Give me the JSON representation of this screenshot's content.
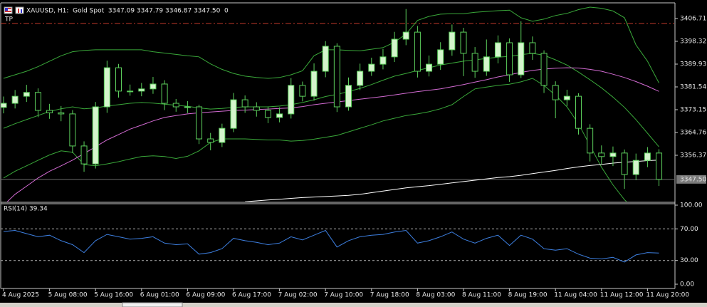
{
  "chart_data": [
    {
      "type": "candlestick",
      "title": "XAUUSD, H1:  Gold Spot  3347.09 3347.79 3346.87 3347.50  0",
      "categories": [
        "4 Aug 2025",
        null,
        null,
        null,
        "5 Aug 08:00",
        null,
        null,
        null,
        "5 Aug 16:00",
        null,
        null,
        null,
        "6 Aug 01:00",
        null,
        null,
        null,
        "6 Aug 09:00",
        null,
        null,
        null,
        "6 Aug 17:00",
        null,
        null,
        null,
        "7 Aug 02:00",
        null,
        null,
        null,
        "7 Aug 10:00",
        null,
        null,
        null,
        "7 Aug 18:00",
        null,
        null,
        null,
        "8 Aug 03:00",
        null,
        null,
        null,
        "8 Aug 11:00",
        null,
        null,
        null,
        "8 Aug 19:00",
        null,
        null,
        null,
        "11 Aug 04:00",
        null,
        null,
        null,
        "11 Aug 12:00",
        null,
        null,
        null,
        "11 Aug 20:00",
        null
      ],
      "open": [
        3374.0,
        3375.5,
        3378.1,
        3379.5,
        3372.9,
        3372.0,
        3371.6,
        3359.8,
        3353.2,
        3374.2,
        3388.6,
        3380.0,
        3380.0,
        3380.8,
        3382.6,
        3375.5,
        3374.2,
        3374.2,
        3362.4,
        3361.1,
        3366.3,
        3376.8,
        3374.2,
        3372.9,
        3370.3,
        3371.6,
        3382.1,
        3378.1,
        3387.3,
        3396.5,
        3374.2,
        3382.1,
        3387.3,
        3389.9,
        3392.6,
        3399.1,
        3401.7,
        3387.3,
        3389.9,
        3395.2,
        3401.7,
        3393.9,
        3387.3,
        3392.6,
        3397.8,
        3386.0,
        3397.8,
        3393.9,
        3382.1,
        3376.8,
        3378.1,
        3366.3,
        3357.2,
        3355.9,
        3357.2,
        3349.3,
        3354.5,
        3357.2
      ],
      "high": [
        3378.0,
        3380.4,
        3382.3,
        3381.0,
        3375.3,
        3374.5,
        3373.0,
        3361.5,
        3376.0,
        3391.2,
        3390.0,
        3382.4,
        3383.0,
        3385.2,
        3384.0,
        3377.1,
        3376.3,
        3375.0,
        3364.6,
        3368.0,
        3379.3,
        3378.4,
        3375.9,
        3374.3,
        3374.0,
        3384.8,
        3383.5,
        3390.2,
        3398.4,
        3397.6,
        3385.0,
        3390.1,
        3392.3,
        3395.5,
        3401.8,
        3410.2,
        3404.0,
        3393.1,
        3398.0,
        3404.5,
        3403.3,
        3396.2,
        3399.0,
        3400.5,
        3399.4,
        3405.7,
        3400.1,
        3395.0,
        3383.6,
        3380.5,
        3379.2,
        3367.8,
        3360.0,
        3359.6,
        3358.5,
        3357.0,
        3359.4,
        3358.6
      ],
      "low": [
        3371.8,
        3373.6,
        3376.0,
        3370.4,
        3369.8,
        3368.9,
        3357.2,
        3350.3,
        3351.5,
        3372.0,
        3377.6,
        3378.3,
        3378.1,
        3379.0,
        3373.0,
        3372.4,
        3371.9,
        3360.5,
        3358.2,
        3359.4,
        3364.9,
        3372.0,
        3370.6,
        3368.2,
        3368.5,
        3369.9,
        3376.2,
        3376.5,
        3385.1,
        3372.3,
        3372.8,
        3380.4,
        3385.6,
        3388.0,
        3390.7,
        3396.9,
        3385.0,
        3385.4,
        3387.8,
        3393.0,
        3385.5,
        3384.9,
        3385.6,
        3390.2,
        3383.4,
        3384.8,
        3391.5,
        3379.3,
        3370.0,
        3374.5,
        3364.0,
        3354.1,
        3353.0,
        3352.4,
        3344.0,
        3347.2,
        3352.0,
        3345.1
      ],
      "close": [
        3375.5,
        3378.1,
        3379.5,
        3372.9,
        3372.0,
        3371.6,
        3359.8,
        3353.2,
        3374.2,
        3388.6,
        3380.0,
        3380.0,
        3380.8,
        3382.6,
        3375.5,
        3374.2,
        3374.2,
        3362.4,
        3361.1,
        3366.3,
        3376.8,
        3374.2,
        3372.9,
        3370.3,
        3371.6,
        3382.1,
        3378.1,
        3387.3,
        3396.5,
        3374.2,
        3382.1,
        3387.3,
        3389.9,
        3392.6,
        3399.1,
        3401.7,
        3387.3,
        3389.9,
        3395.2,
        3401.7,
        3393.9,
        3387.3,
        3392.6,
        3397.8,
        3386.0,
        3397.8,
        3393.9,
        3382.1,
        3376.8,
        3378.1,
        3366.3,
        3357.2,
        3355.9,
        3357.2,
        3349.3,
        3354.5,
        3357.2,
        3347.5
      ],
      "up_color": "#d4f5cc",
      "down_color": "#000000",
      "candle_line_color": "#5ccf5c",
      "overlays": [
        {
          "color": "#3aa83a",
          "values": [
            3384.7,
            3386,
            3387.3,
            3389,
            3391,
            3393,
            3394.5,
            3395,
            3395.2,
            3395.2,
            3395.2,
            3395.2,
            3395.2,
            3394.5,
            3394,
            3393.5,
            3393,
            3392.6,
            3390,
            3388,
            3386.5,
            3385.5,
            3385,
            3384.7,
            3385,
            3386,
            3387.5,
            3393,
            3395.2,
            3395.2,
            3395,
            3394.8,
            3395.4,
            3396,
            3398,
            3401,
            3406,
            3407.5,
            3408.3,
            3408.5,
            3408.5,
            3409,
            3409.3,
            3409.6,
            3409.8,
            3407,
            3405.7,
            3406.5,
            3407.8,
            3408.6,
            3410,
            3410.9,
            3410.5,
            3409.5,
            3407,
            3397,
            3391,
            3383
          ]
        },
        {
          "color": "#3aa83a",
          "values": [
            3366.3,
            3368,
            3369.5,
            3371,
            3372.5,
            3373.5,
            3374.2,
            3373.5,
            3373.8,
            3374.5,
            3375,
            3375.5,
            3375.8,
            3375.6,
            3375.2,
            3374.8,
            3374.4,
            3373.8,
            3373.4,
            3373.6,
            3374,
            3374.2,
            3374.2,
            3374.2,
            3374.5,
            3375,
            3375.8,
            3376.8,
            3378,
            3378.8,
            3379.8,
            3381,
            3382.4,
            3384,
            3385.5,
            3386.5,
            3387.6,
            3388.6,
            3389.6,
            3390.3,
            3391,
            3391.5,
            3392,
            3392.5,
            3392.8,
            3393.4,
            3393.9,
            3393.2,
            3391.5,
            3389.6,
            3387,
            3384.2,
            3381.2,
            3377.8,
            3374,
            3369.5,
            3364.5,
            3359.5
          ]
        },
        {
          "color": "#3aa83a",
          "values": [
            3348,
            3350.5,
            3352.5,
            3354.5,
            3356.5,
            3358,
            3357.5,
            3353,
            3352.5,
            3353.2,
            3354,
            3355,
            3355.9,
            3356.2,
            3355.9,
            3355.2,
            3356,
            3358,
            3361.1,
            3362.4,
            3362.4,
            3362.4,
            3362.2,
            3362,
            3362,
            3361.6,
            3361.8,
            3362.3,
            3363,
            3363.7,
            3365,
            3366.3,
            3367.6,
            3369,
            3370,
            3371,
            3371.6,
            3372.4,
            3373.5,
            3375,
            3378,
            3380.8,
            3381.5,
            3382.1,
            3382.5,
            3383.4,
            3384.7,
            3382.1,
            3378.5,
            3374.2,
            3368,
            3360,
            3352,
            3345.5,
            3340,
            3336,
            3336,
            3338
          ]
        },
        {
          "color": "#d36bd3",
          "values": [
            3338,
            3342,
            3345,
            3348,
            3350.5,
            3352.5,
            3354.6,
            3357,
            3359.5,
            3362,
            3364,
            3366,
            3367.5,
            3369,
            3370.3,
            3371,
            3371.6,
            3372,
            3372.3,
            3372.6,
            3372.9,
            3373,
            3373.2,
            3373.4,
            3373.6,
            3373.8,
            3374.3,
            3375,
            3375.5,
            3376,
            3376.5,
            3377,
            3377.5,
            3378,
            3378.6,
            3379.2,
            3379.8,
            3380.3,
            3380.8,
            3381.6,
            3382.4,
            3383.3,
            3384.2,
            3385.2,
            3386,
            3386.9,
            3387.6,
            3388.1,
            3388.4,
            3388.6,
            3388.5,
            3388,
            3387.3,
            3386.2,
            3385,
            3383.5,
            3381.8,
            3379.9
          ]
        },
        {
          "color": "#ffffff",
          "values": [
            null,
            null,
            null,
            null,
            null,
            null,
            null,
            null,
            null,
            null,
            null,
            null,
            null,
            null,
            null,
            null,
            null,
            null,
            null,
            null,
            null,
            3339.3,
            3339.6,
            3339.9,
            3340.2,
            3340.5,
            3340.8,
            3341,
            3341.2,
            3341.4,
            3341.6,
            3342,
            3342.6,
            3343.2,
            3343.8,
            3344.4,
            3344.8,
            3345.2,
            3345.7,
            3346.2,
            3346.7,
            3347.2,
            3347.7,
            3348.2,
            3348.5,
            3349,
            3349.6,
            3350.2,
            3350.8,
            3351.5,
            3352.1,
            3352.6,
            3353,
            3353.5,
            3353.8,
            3354.1,
            3354.4,
            3354.6
          ]
        }
      ],
      "ylim": [
        3339.33,
        3412.48
      ],
      "yticks": [
        3406.71,
        3398.32,
        3389.93,
        3381.54,
        3373.15,
        3364.76,
        3356.37
      ],
      "levels": [
        {
          "label": "TP",
          "value": 3404.9,
          "color": "#c0392b"
        }
      ],
      "last_price": {
        "value": 3347.5,
        "label": "3347.50"
      }
    },
    {
      "type": "line",
      "title": "RSI(14) 39.34",
      "values": [
        66.7,
        68,
        64,
        60,
        62,
        55,
        50,
        40,
        55,
        63,
        60,
        57,
        58,
        60,
        52,
        50,
        51,
        38,
        40,
        45,
        58,
        55,
        53,
        50,
        52,
        60,
        56,
        62,
        68,
        47,
        55,
        60,
        62,
        63,
        66,
        68,
        52,
        55,
        60,
        66,
        57,
        52,
        58,
        62,
        49,
        62,
        57,
        45,
        43,
        45,
        38,
        33,
        32,
        34,
        28,
        37,
        40,
        39.34
      ],
      "color": "#3d7fe0",
      "ylim": [
        0,
        100
      ],
      "yticks": [
        {
          "value": 100,
          "label": "100.00"
        },
        {
          "value": 70,
          "label": "70.00"
        },
        {
          "value": 30,
          "label": "30.00"
        },
        {
          "value": 0,
          "label": "0.00"
        }
      ],
      "levels": [
        70,
        30
      ]
    }
  ]
}
